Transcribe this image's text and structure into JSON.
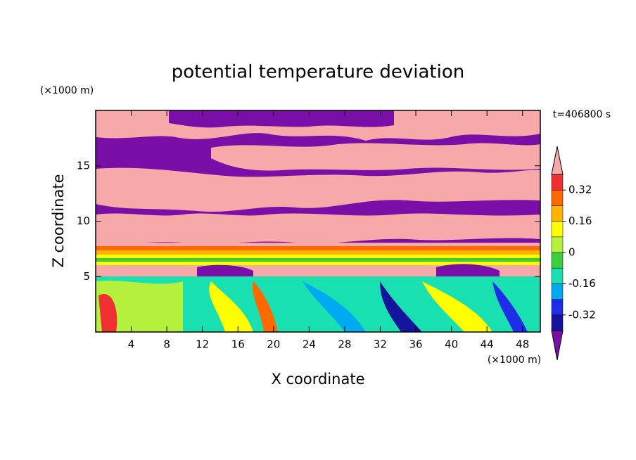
{
  "chart_data": {
    "type": "contour",
    "title": "potential temperature deviation",
    "x_label": "X coordinate",
    "y_label": "Z coordinate",
    "x_unit": "(×1000 m)",
    "y_unit": "(×1000 m)",
    "annotation": "t=406800 s",
    "xlim": [
      0,
      50
    ],
    "xticks": [
      4,
      8,
      12,
      16,
      20,
      24,
      28,
      32,
      36,
      40,
      44,
      48
    ],
    "ylim": [
      0,
      20
    ],
    "yticks": [
      5,
      10,
      15
    ],
    "colorbar": {
      "levels": [
        -0.4,
        -0.32,
        -0.24,
        -0.16,
        -0.08,
        0,
        0.08,
        0.16,
        0.24,
        0.32,
        0.4
      ],
      "colors": [
        "#7a0fa8",
        "#14149c",
        "#1e2ee6",
        "#00aaf0",
        "#19e0b0",
        "#3ccd3c",
        "#b4f03c",
        "#ffff00",
        "#ffb400",
        "#ff6a00",
        "#f03030",
        "#f7a8a8"
      ],
      "ticks": [
        -0.32,
        -0.16,
        0,
        0.16,
        0.32
      ]
    }
  }
}
